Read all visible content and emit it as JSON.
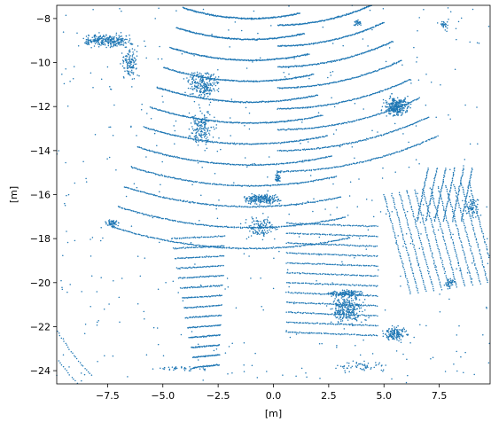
{
  "chart_data": {
    "type": "scatter",
    "title": "",
    "xlabel": "[m]",
    "ylabel": "[m]",
    "xlim": [
      -9.8,
      9.8
    ],
    "ylim": [
      -24.6,
      -7.4
    ],
    "xticks": [
      -7.5,
      -5.0,
      -2.5,
      0.0,
      2.5,
      5.0,
      7.5
    ],
    "xtick_labels": [
      "−7.5",
      "−5.0",
      "−2.5",
      "0.0",
      "2.5",
      "5.0",
      "7.5"
    ],
    "yticks": [
      -8,
      -10,
      -12,
      -14,
      -16,
      -18,
      -20,
      -22,
      -24
    ],
    "ytick_labels": [
      "−8",
      "−10",
      "−12",
      "−14",
      "−16",
      "−18",
      "−20",
      "−22",
      "−24"
    ],
    "grid": false,
    "legend": "none",
    "marker_color": "#1f77b4",
    "description_of_points": "dense LiDAR point cloud (bird's-eye view)",
    "series": [
      {
        "values": [
          {
            "x": -7.8,
            "y": -8.9
          },
          {
            "x": -7.4,
            "y": -8.8
          },
          {
            "x": -7.0,
            "y": -8.9
          },
          {
            "x": -6.7,
            "y": -9.3
          },
          {
            "x": -7.5,
            "y": -10.2
          },
          {
            "x": -6.4,
            "y": -11.1
          },
          {
            "x": -3.6,
            "y": -10.8
          },
          {
            "x": -3.3,
            "y": -12.2
          },
          {
            "x": -3.7,
            "y": -13.2
          },
          {
            "x": -3.1,
            "y": -14.0
          },
          {
            "x": -0.6,
            "y": -16.1
          },
          {
            "x": -0.2,
            "y": -16.4
          },
          {
            "x": 0.2,
            "y": -15.3
          },
          {
            "x": 3.3,
            "y": -20.4
          },
          {
            "x": 3.8,
            "y": -21.0
          },
          {
            "x": 3.2,
            "y": -22.1
          },
          {
            "x": 5.5,
            "y": -12.0
          },
          {
            "x": 5.9,
            "y": -11.7
          },
          {
            "x": 5.6,
            "y": -22.3
          },
          {
            "x": -7.3,
            "y": -17.2
          },
          {
            "x": -1.1,
            "y": -18.8
          },
          {
            "x": 8.0,
            "y": -20.0
          },
          {
            "x": 9.0,
            "y": -16.8
          },
          {
            "x": 7.2,
            "y": -16.2
          }
        ]
      }
    ]
  }
}
